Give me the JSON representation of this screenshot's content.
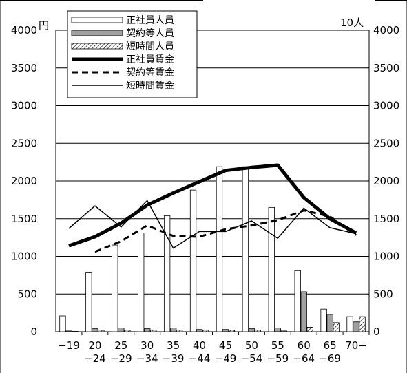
{
  "chart_data": {
    "type": "bar",
    "title": "",
    "left_unit": "円",
    "right_unit": "10人",
    "categories": [
      [
        "−19",
        ""
      ],
      [
        "20",
        "−24"
      ],
      [
        "25",
        "−29"
      ],
      [
        "30",
        "−34"
      ],
      [
        "35",
        "−39"
      ],
      [
        "40",
        "−44"
      ],
      [
        "45",
        "−49"
      ],
      [
        "50",
        "−54"
      ],
      [
        "55",
        "−59"
      ],
      [
        "60",
        "−64"
      ],
      [
        "65",
        "−69"
      ],
      [
        "70−",
        ""
      ]
    ],
    "y_left": {
      "min": 0,
      "max": 4000,
      "ticks": [
        0,
        500,
        1000,
        1500,
        2000,
        2500,
        3000,
        3500,
        4000
      ]
    },
    "y_right": {
      "min": 0,
      "max": 4000,
      "ticks": [
        0,
        500,
        1000,
        1500,
        2000,
        2500,
        3000,
        3500,
        4000
      ]
    },
    "grid": true,
    "legend_position": "top-left",
    "bar_series": [
      {
        "name": "正社員人員",
        "style": "white",
        "values": [
          210,
          790,
          1150,
          1310,
          1540,
          1880,
          2190,
          2190,
          1650,
          810,
          300,
          200
        ]
      },
      {
        "name": "契約等人員",
        "style": "gray",
        "values": [
          10,
          40,
          50,
          40,
          50,
          30,
          30,
          40,
          50,
          530,
          230,
          130
        ]
      },
      {
        "name": "短時間人員",
        "style": "hatch",
        "values": [
          5,
          20,
          20,
          20,
          20,
          20,
          20,
          20,
          10,
          60,
          120,
          200
        ]
      }
    ],
    "line_series": [
      {
        "name": "正社員賃金",
        "style": "thick",
        "values": [
          1140,
          1260,
          1440,
          1680,
          1840,
          1990,
          2140,
          2180,
          2210,
          1780,
          1500,
          1310
        ]
      },
      {
        "name": "契約等賃金",
        "style": "dashed",
        "values": [
          null,
          1060,
          1200,
          1410,
          1270,
          1260,
          1360,
          1410,
          1480,
          1610,
          1530,
          1280
        ]
      },
      {
        "name": "短時間賃金",
        "style": "thin",
        "values": [
          1370,
          1670,
          1390,
          1740,
          1110,
          1330,
          1330,
          1470,
          1240,
          1640,
          1380,
          1300
        ]
      }
    ]
  }
}
